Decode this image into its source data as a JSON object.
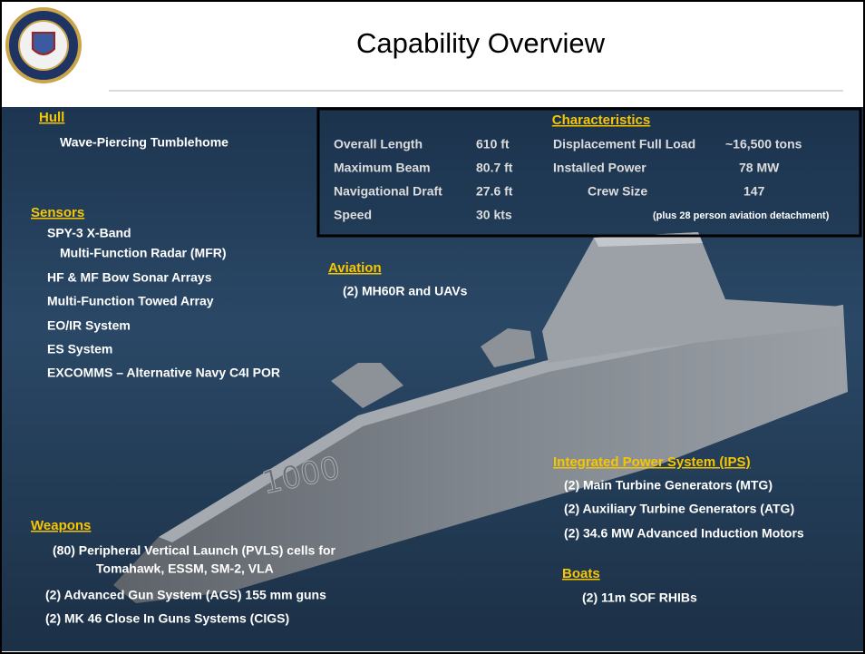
{
  "header": {
    "title": "Capability Overview"
  },
  "hull": {
    "heading": "Hull",
    "items": [
      "Wave-Piercing Tumblehome"
    ]
  },
  "sensors": {
    "heading": "Sensors",
    "items": [
      "SPY-3 X-Band",
      "Multi-Function Radar (MFR)",
      "HF & MF Bow Sonar Arrays",
      "Multi-Function Towed Array",
      "EO/IR System",
      "ES System",
      "EXCOMMS – Alternative Navy C4I POR"
    ]
  },
  "aviation": {
    "heading": "Aviation",
    "items": [
      "(2) MH60R and UAVs"
    ]
  },
  "characteristics": {
    "heading": "Characteristics",
    "rows": [
      [
        "Overall Length",
        "610 ft",
        "Displacement Full Load",
        "~16,500 tons"
      ],
      [
        "Maximum Beam",
        "80.7 ft",
        "Installed Power",
        "78 MW"
      ],
      [
        "Navigational Draft",
        "27.6 ft",
        "Crew Size",
        "147"
      ],
      [
        "Speed",
        "30 kts",
        "(plus 28 person aviation detachment)"
      ]
    ]
  },
  "ips": {
    "heading": "Integrated Power System (IPS)",
    "items": [
      "(2) Main Turbine Generators (MTG)",
      "(2) Auxiliary Turbine Generators (ATG)",
      "(2) 34.6 MW Advanced Induction Motors"
    ]
  },
  "boats": {
    "heading": "Boats",
    "items": [
      "(2) 11m SOF RHIBs"
    ]
  },
  "weapons": {
    "heading": "Weapons",
    "items": [
      "(80) Peripheral Vertical Launch (PVLS)  cells for",
      "Tomahawk, ESSM, SM-2, VLA",
      "(2) Advanced Gun System (AGS) 155 mm guns",
      "(2) MK 46 Close In Guns Systems (CIGS)"
    ]
  },
  "ship": {
    "hull_number": "1000"
  }
}
